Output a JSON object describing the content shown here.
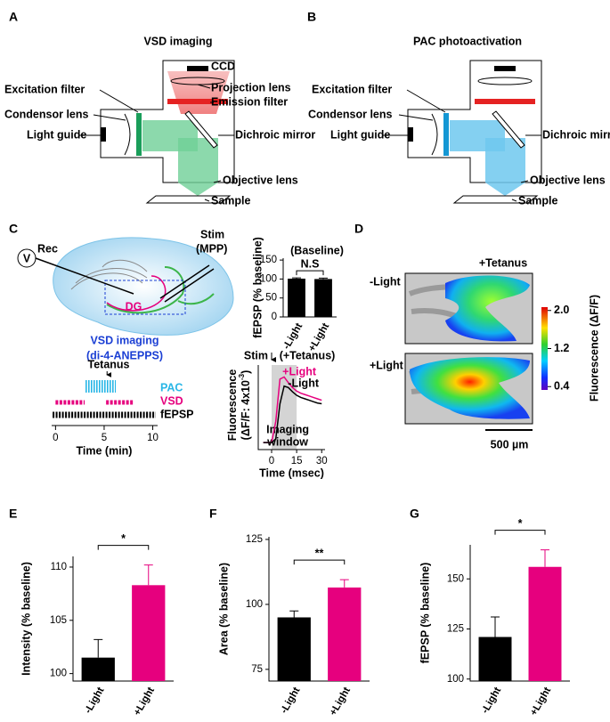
{
  "panels": {
    "a": {
      "label": "A",
      "title": "VSD imaging",
      "ccd": "CCD",
      "projection_lens": "Projection lens",
      "emission_filter": "Emission filter",
      "excitation_filter": "Excitation filter",
      "condensor_lens": "Condensor lens",
      "light_guide": "Light guide",
      "dichroic_mirror": "Dichroic mirror",
      "objective_lens": "Objective lens",
      "sample": "Sample"
    },
    "b": {
      "label": "B",
      "title": "PAC photoactivation",
      "excitation_filter": "Excitation filter",
      "condensor_lens": "Condensor lens",
      "light_guide": "Light guide",
      "dichroic_mirror": "Dichroic mirror",
      "objective_lens": "Objective lens",
      "sample": "Sample"
    },
    "c": {
      "label": "C",
      "voltmeter": "V",
      "rec": "Rec",
      "stim": "Stim",
      "mpp": "(MPP)",
      "dg": "DG",
      "vsd_imaging": "VSD imaging",
      "dye": "(di-4-ANEPPS)",
      "tetanus": "Tetanus",
      "pac": "PAC",
      "vsd": "VSD",
      "fepsp": "fEPSP",
      "time_label": "Time (min)",
      "time_lim": [
        -0.4,
        10.5
      ],
      "time_ticks": [
        0,
        5,
        10
      ],
      "tetanus_time": 5.3,
      "pac_span": [
        3,
        6.2
      ],
      "vsd_spans": [
        [
          0,
          3
        ],
        [
          5.2,
          8
        ]
      ],
      "fepsp_span": [
        -0.3,
        10.3
      ]
    },
    "d": {
      "label": "D",
      "tetanus": "+Tetanus",
      "minus_light": "-Light",
      "plus_light": "+Light",
      "colorbar_label": "Fluorescence (ΔF/F)",
      "clim": [
        0.33,
        2.07
      ],
      "cticks": [
        {
          "value": 2,
          "label": "2.0"
        },
        1.2,
        0.4
      ],
      "scale_bar": "500 µm"
    },
    "e": {
      "label": "E"
    },
    "f": {
      "label": "F"
    },
    "g": {
      "label": "G"
    }
  },
  "chart_data": [
    {
      "type": "bar",
      "title": "(Baseline)",
      "ylabel": "fEPSP (% baseline)",
      "categories": [
        "-Light",
        "+Light"
      ],
      "values": [
        101,
        100
      ],
      "errors": [
        2,
        2.5
      ],
      "colors": [
        "#000000",
        "#000000"
      ],
      "ylim": [
        0,
        155
      ],
      "yticks": [
        0,
        50,
        100,
        150
      ],
      "annotation": "N.S"
    },
    {
      "type": "line",
      "ylabel": [
        "Fluorescence",
        "(ΔF/F: 4x10",
        "-3",
        ")"
      ],
      "xlabel": "Time (msec)",
      "title": "(+Tetanus)",
      "stim": "Stim",
      "window_label": [
        "Imaging",
        "window"
      ],
      "window": [
        0,
        15
      ],
      "x": [
        -5,
        -2.5,
        0,
        2.5,
        5,
        7.5,
        10,
        12.5,
        15,
        17.5,
        20,
        22.5,
        25,
        27.5,
        30
      ],
      "xlim": [
        -8,
        32
      ],
      "xticks": [
        0,
        15,
        30
      ],
      "ylim": [
        -0.1,
        1.1
      ],
      "series": [
        {
          "name": "+Light",
          "color": "#e6007e",
          "values": [
            0,
            0,
            0,
            0.3,
            0.9,
            0.93,
            0.85,
            0.78,
            0.73,
            0.7,
            0.68,
            0.66,
            0.64,
            0.62,
            0.6
          ]
        },
        {
          "name": "-Light",
          "color": "#000000",
          "values": [
            0,
            0,
            0,
            0.05,
            0.55,
            0.8,
            0.78,
            0.72,
            0.67,
            0.64,
            0.62,
            0.6,
            0.58,
            0.56,
            0.55
          ]
        }
      ]
    },
    {
      "type": "bar",
      "ylabel": "Intensity (% baseline)",
      "categories": [
        "-Light",
        "+Light"
      ],
      "values": [
        101.5,
        108.3
      ],
      "errors": [
        1.7,
        1.9
      ],
      "colors": [
        "#000000",
        "#e6007e"
      ],
      "ylim": [
        99.3,
        111
      ],
      "yticks": [
        100,
        105,
        110
      ],
      "annotation": "*"
    },
    {
      "type": "bar",
      "ylabel": "Area (% baseline)",
      "categories": [
        "-Light",
        "+Light"
      ],
      "values": [
        95,
        106.5
      ],
      "errors": [
        2.5,
        3
      ],
      "colors": [
        "#000000",
        "#e6007e"
      ],
      "ylim": [
        70.5,
        126
      ],
      "yticks": [
        75,
        100,
        125
      ],
      "annotation": "**"
    },
    {
      "type": "bar",
      "ylabel": "fEPSP (% baseline)",
      "categories": [
        "-Light",
        "+Light"
      ],
      "values": [
        121,
        156
      ],
      "errors": [
        10,
        8.5
      ],
      "colors": [
        "#000000",
        "#e6007e"
      ],
      "ylim": [
        99,
        167
      ],
      "yticks": [
        100,
        125,
        150
      ],
      "annotation": "*"
    }
  ]
}
